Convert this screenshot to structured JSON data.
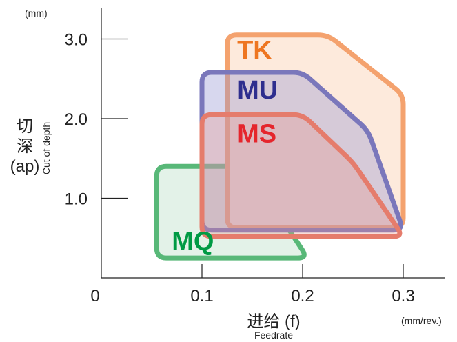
{
  "chart_data": {
    "type": "area",
    "y_unit": "(mm)",
    "x_unit": "(mm/rev.)",
    "ylabel_cjk": [
      "切",
      "深"
    ],
    "ylabel_abbr": "(ap)",
    "ylabel_en": "Cut of depth",
    "xlabel": "进给 (f)",
    "xlabel_en": "Feedrate",
    "x_ticks": [
      0,
      0.1,
      0.2,
      0.3
    ],
    "x_tick_labels": [
      "0",
      "0.1",
      "0.2",
      "0.3"
    ],
    "y_ticks": [
      1.0,
      2.0,
      3.0
    ],
    "y_tick_labels": [
      "1.0",
      "2.0",
      "3.0"
    ],
    "xlim": [
      0,
      0.35
    ],
    "ylim": [
      0,
      3.4
    ],
    "series": [
      {
        "name": "MQ",
        "color": "#58b878",
        "fill": "#e3f2e8",
        "label_color": "#009a44",
        "label_at": [
          0.07,
          0.35
        ],
        "points": [
          [
            0.055,
            0.25
          ],
          [
            0.205,
            0.25
          ],
          [
            0.145,
            1.4
          ],
          [
            0.055,
            1.4
          ]
        ]
      },
      {
        "name": "TK",
        "color": "#f4a26e",
        "fill": "#fdeadc",
        "label_color": "#ee7621",
        "label_at": [
          0.135,
          2.75
        ],
        "points": [
          [
            0.125,
            0.63
          ],
          [
            0.3,
            0.63
          ],
          [
            0.3,
            2.3
          ],
          [
            0.225,
            3.05
          ],
          [
            0.125,
            3.05
          ]
        ]
      },
      {
        "name": "MU",
        "color": "#7a77bb",
        "fill": "rgba(150,150,210,0.38)",
        "label_color": "#2e2e8e",
        "label_at": [
          0.135,
          2.25
        ],
        "points": [
          [
            0.1,
            0.6
          ],
          [
            0.3,
            0.6
          ],
          [
            0.265,
            1.85
          ],
          [
            0.2,
            2.58
          ],
          [
            0.1,
            2.58
          ]
        ]
      },
      {
        "name": "MS",
        "color": "#e57c6c",
        "fill": "rgba(232,150,140,0.32)",
        "label_color": "#e5252c",
        "label_at": [
          0.135,
          1.7
        ],
        "points": [
          [
            0.1,
            0.52
          ],
          [
            0.3,
            0.52
          ],
          [
            0.25,
            1.45
          ],
          [
            0.2,
            2.05
          ],
          [
            0.1,
            2.05
          ]
        ]
      }
    ]
  }
}
